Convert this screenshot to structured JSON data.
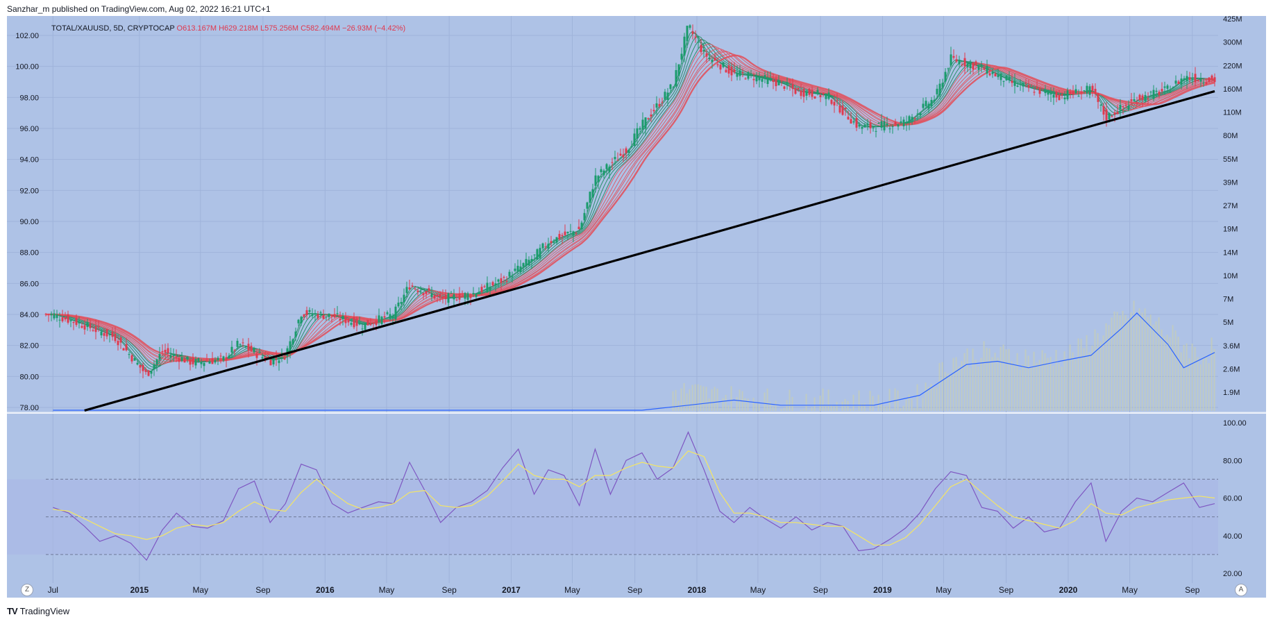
{
  "header": {
    "published": "Sanzhar_m published on TradingView.com, Aug 02, 2022 16:21 UTC+1"
  },
  "legend": {
    "symbol": "TOTAL/XAUUSD, 5D, CRYPTOCAP",
    "ohlc": "O613.167M  H629.218M  L575.256M  C582.494M  −26.93M (−4.42%)"
  },
  "footer": {
    "brand": "TradingView",
    "logo": "TV"
  },
  "buttons": {
    "left": "Z",
    "right": "A"
  },
  "colors": {
    "background": "#aec2e6",
    "grid": "#9fb3da",
    "bull": "#1a9b6c",
    "bear": "#e03a4e",
    "ribbon_fast": "#1e8a5e",
    "ribbon_slow": "#e0535f",
    "trendline": "#000000",
    "volume_ma": "#2962ff",
    "rsi": "#7e57c2",
    "rsi_ma": "#f5e663"
  },
  "chart_data": [
    {
      "type": "line",
      "title": "",
      "left_axis_ticks": [
        "102.00",
        "100.00",
        "98.00",
        "96.00",
        "94.00",
        "92.00",
        "90.00",
        "88.00",
        "86.00",
        "84.00",
        "82.00",
        "80.00",
        "78.00"
      ],
      "right_axis_ticks": [
        "425M",
        "300M",
        "220M",
        "160M",
        "110M",
        "80M",
        "55M",
        "39M",
        "27M",
        "19M",
        "14M",
        "10M",
        "7M",
        "5M",
        "3.6M",
        "2.6M",
        "1.9M"
      ],
      "x_ticks": [
        "Jul",
        "2015",
        "May",
        "Sep",
        "2016",
        "May",
        "Sep",
        "2017",
        "May",
        "Sep",
        "2018",
        "May",
        "Sep",
        "2019",
        "May",
        "Sep",
        "2020",
        "May",
        "Sep"
      ],
      "log_scale": true,
      "series": [
        {
          "values": [
            [
              "2014-07",
              84.0
            ],
            [
              "2014-09",
              83.3
            ],
            [
              "2014-11",
              82.5
            ],
            [
              "2015-01",
              80.1
            ],
            [
              "2015-02",
              81.6
            ],
            [
              "2015-04",
              80.9
            ],
            [
              "2015-06",
              81.1
            ],
            [
              "2015-07",
              82.1
            ],
            [
              "2015-09",
              81.0
            ],
            [
              "2015-10",
              81.4
            ],
            [
              "2015-11",
              84.1
            ],
            [
              "2016-01",
              83.9
            ],
            [
              "2016-03",
              83.3
            ],
            [
              "2016-05",
              84.0
            ],
            [
              "2016-06",
              85.9
            ],
            [
              "2016-08",
              85.0
            ],
            [
              "2016-10",
              85.3
            ],
            [
              "2016-12",
              86.2
            ],
            [
              "2017-02",
              87.7
            ],
            [
              "2017-03",
              88.7
            ],
            [
              "2017-05",
              89.5
            ],
            [
              "2017-06",
              92.8
            ],
            [
              "2017-08",
              94.6
            ],
            [
              "2017-09",
              96.2
            ],
            [
              "2017-11",
              98.8
            ],
            [
              "2017-12",
              102.6
            ],
            [
              "2018-01",
              100.8
            ],
            [
              "2018-03",
              99.5
            ],
            [
              "2018-04",
              99.4
            ],
            [
              "2018-06",
              98.9
            ],
            [
              "2018-07",
              98.4
            ],
            [
              "2018-09",
              98.1
            ],
            [
              "2018-11",
              96.1
            ],
            [
              "2018-12",
              96.1
            ],
            [
              "2019-02",
              96.4
            ],
            [
              "2019-04",
              98.0
            ],
            [
              "2019-05",
              100.5
            ],
            [
              "2019-07",
              99.9
            ],
            [
              "2019-09",
              98.9
            ],
            [
              "2019-10",
              98.6
            ],
            [
              "2019-12",
              98.1
            ],
            [
              "2020-02",
              98.5
            ],
            [
              "2020-03",
              96.7
            ],
            [
              "2020-05",
              97.9
            ],
            [
              "2020-07",
              98.5
            ],
            [
              "2020-08",
              99.3
            ],
            [
              "2020-10",
              99.1
            ]
          ]
        },
        {
          "values": [
            [
              "2014-09",
              77.8
            ],
            [
              "2020-10",
              98.4
            ]
          ]
        }
      ],
      "volume": {
        "values": [
          [
            "2017-12",
            1.9
          ],
          [
            "2018-02",
            1.8
          ],
          [
            "2018-06",
            1.7
          ],
          [
            "2018-10",
            1.7
          ],
          [
            "2019-01",
            1.7
          ],
          [
            "2019-03",
            1.8
          ],
          [
            "2019-05",
            2.7
          ],
          [
            "2019-07",
            3.0
          ],
          [
            "2019-09",
            2.9
          ],
          [
            "2019-11",
            2.8
          ],
          [
            "2020-01",
            3.0
          ],
          [
            "2020-03",
            4.0
          ],
          [
            "2020-05",
            5.0
          ],
          [
            "2020-07",
            3.8
          ],
          [
            "2020-09",
            2.9
          ],
          [
            "2020-10",
            3.2
          ]
        ],
        "ma": [
          [
            "2014-07",
            1.2
          ],
          [
            "2017-09",
            1.25
          ],
          [
            "2017-12",
            1.6
          ],
          [
            "2018-03",
            1.7
          ],
          [
            "2018-06",
            1.6
          ],
          [
            "2018-12",
            1.6
          ],
          [
            "2019-03",
            1.8
          ],
          [
            "2019-06",
            2.6
          ],
          [
            "2019-08",
            2.7
          ],
          [
            "2019-10",
            2.5
          ],
          [
            "2019-12",
            2.7
          ],
          [
            "2020-02",
            2.9
          ],
          [
            "2020-04",
            4.0
          ],
          [
            "2020-05",
            4.8
          ],
          [
            "2020-07",
            3.3
          ],
          [
            "2020-08",
            2.5
          ],
          [
            "2020-10",
            3.0
          ]
        ]
      }
    },
    {
      "type": "line",
      "title": "",
      "y_ticks": [
        "100.00",
        "80.00",
        "60.00",
        "40.00",
        "20.00"
      ],
      "ylim": [
        15,
        100
      ],
      "bands": [
        70,
        50,
        30
      ],
      "series": [
        {
          "values": [
            [
              "2014-07",
              55
            ],
            [
              "2014-08",
              52
            ],
            [
              "2014-09",
              45
            ],
            [
              "2014-10",
              37
            ],
            [
              "2014-11",
              40
            ],
            [
              "2014-12",
              36
            ],
            [
              "2015-01",
              27
            ],
            [
              "2015-02",
              43
            ],
            [
              "2015-03",
              52
            ],
            [
              "2015-04",
              45
            ],
            [
              "2015-05",
              44
            ],
            [
              "2015-06",
              48
            ],
            [
              "2015-07",
              65
            ],
            [
              "2015-08",
              69
            ],
            [
              "2015-09",
              47
            ],
            [
              "2015-10",
              57
            ],
            [
              "2015-11",
              78
            ],
            [
              "2015-12",
              75
            ],
            [
              "2016-01",
              57
            ],
            [
              "2016-02",
              52
            ],
            [
              "2016-03",
              55
            ],
            [
              "2016-04",
              58
            ],
            [
              "2016-05",
              57
            ],
            [
              "2016-06",
              79
            ],
            [
              "2016-07",
              64
            ],
            [
              "2016-08",
              47
            ],
            [
              "2016-09",
              55
            ],
            [
              "2016-10",
              58
            ],
            [
              "2016-11",
              64
            ],
            [
              "2016-12",
              76
            ],
            [
              "2017-01",
              86
            ],
            [
              "2017-02",
              62
            ],
            [
              "2017-03",
              75
            ],
            [
              "2017-04",
              72
            ],
            [
              "2017-05",
              56
            ],
            [
              "2017-06",
              86
            ],
            [
              "2017-07",
              62
            ],
            [
              "2017-08",
              80
            ],
            [
              "2017-09",
              84
            ],
            [
              "2017-10",
              70
            ],
            [
              "2017-11",
              76
            ],
            [
              "2017-12",
              95
            ],
            [
              "2018-01",
              75
            ],
            [
              "2018-02",
              53
            ],
            [
              "2018-03",
              47
            ],
            [
              "2018-04",
              55
            ],
            [
              "2018-05",
              49
            ],
            [
              "2018-06",
              44
            ],
            [
              "2018-07",
              50
            ],
            [
              "2018-08",
              43
            ],
            [
              "2018-09",
              47
            ],
            [
              "2018-10",
              45
            ],
            [
              "2018-11",
              32
            ],
            [
              "2018-12",
              33
            ],
            [
              "2019-01",
              38
            ],
            [
              "2019-02",
              44
            ],
            [
              "2019-03",
              52
            ],
            [
              "2019-04",
              65
            ],
            [
              "2019-05",
              74
            ],
            [
              "2019-06",
              72
            ],
            [
              "2019-07",
              55
            ],
            [
              "2019-08",
              53
            ],
            [
              "2019-09",
              44
            ],
            [
              "2019-10",
              50
            ],
            [
              "2019-11",
              42
            ],
            [
              "2019-12",
              44
            ],
            [
              "2020-01",
              58
            ],
            [
              "2020-02",
              68
            ],
            [
              "2020-03",
              37
            ],
            [
              "2020-04",
              53
            ],
            [
              "2020-05",
              60
            ],
            [
              "2020-06",
              58
            ],
            [
              "2020-07",
              63
            ],
            [
              "2020-08",
              68
            ],
            [
              "2020-09",
              55
            ],
            [
              "2020-10",
              57
            ]
          ]
        },
        {
          "values": [
            [
              "2014-07",
              54
            ],
            [
              "2014-08",
              53
            ],
            [
              "2014-09",
              49
            ],
            [
              "2014-10",
              45
            ],
            [
              "2014-11",
              41
            ],
            [
              "2014-12",
              40
            ],
            [
              "2015-01",
              38
            ],
            [
              "2015-02",
              40
            ],
            [
              "2015-03",
              44
            ],
            [
              "2015-04",
              46
            ],
            [
              "2015-05",
              45
            ],
            [
              "2015-06",
              47
            ],
            [
              "2015-07",
              53
            ],
            [
              "2015-08",
              58
            ],
            [
              "2015-09",
              54
            ],
            [
              "2015-10",
              53
            ],
            [
              "2015-11",
              63
            ],
            [
              "2015-12",
              70
            ],
            [
              "2016-01",
              63
            ],
            [
              "2016-02",
              57
            ],
            [
              "2016-03",
              54
            ],
            [
              "2016-04",
              55
            ],
            [
              "2016-05",
              57
            ],
            [
              "2016-06",
              63
            ],
            [
              "2016-07",
              64
            ],
            [
              "2016-08",
              56
            ],
            [
              "2016-09",
              55
            ],
            [
              "2016-10",
              56
            ],
            [
              "2016-11",
              61
            ],
            [
              "2016-12",
              69
            ],
            [
              "2017-01",
              78
            ],
            [
              "2017-02",
              72
            ],
            [
              "2017-03",
              70
            ],
            [
              "2017-04",
              70
            ],
            [
              "2017-05",
              66
            ],
            [
              "2017-06",
              72
            ],
            [
              "2017-07",
              72
            ],
            [
              "2017-08",
              76
            ],
            [
              "2017-09",
              79
            ],
            [
              "2017-10",
              77
            ],
            [
              "2017-11",
              76
            ],
            [
              "2017-12",
              85
            ],
            [
              "2018-01",
              82
            ],
            [
              "2018-02",
              63
            ],
            [
              "2018-03",
              52
            ],
            [
              "2018-04",
              52
            ],
            [
              "2018-05",
              50
            ],
            [
              "2018-06",
              47
            ],
            [
              "2018-07",
              47
            ],
            [
              "2018-08",
              46
            ],
            [
              "2018-09",
              45
            ],
            [
              "2018-10",
              45
            ],
            [
              "2018-11",
              40
            ],
            [
              "2018-12",
              35
            ],
            [
              "2019-01",
              35
            ],
            [
              "2019-02",
              39
            ],
            [
              "2019-03",
              46
            ],
            [
              "2019-04",
              56
            ],
            [
              "2019-05",
              66
            ],
            [
              "2019-06",
              70
            ],
            [
              "2019-07",
              63
            ],
            [
              "2019-08",
              56
            ],
            [
              "2019-09",
              50
            ],
            [
              "2019-10",
              48
            ],
            [
              "2019-11",
              46
            ],
            [
              "2019-12",
              44
            ],
            [
              "2020-01",
              48
            ],
            [
              "2020-02",
              57
            ],
            [
              "2020-03",
              52
            ],
            [
              "2020-04",
              51
            ],
            [
              "2020-05",
              55
            ],
            [
              "2020-06",
              57
            ],
            [
              "2020-07",
              59
            ],
            [
              "2020-08",
              60
            ],
            [
              "2020-09",
              61
            ],
            [
              "2020-10",
              60
            ]
          ]
        }
      ]
    }
  ]
}
